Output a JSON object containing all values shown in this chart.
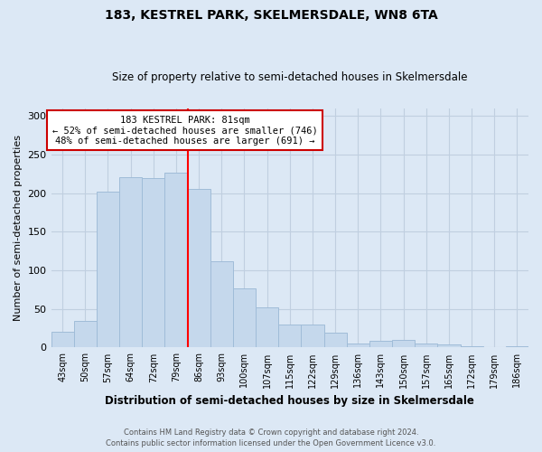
{
  "title": "183, KESTREL PARK, SKELMERSDALE, WN8 6TA",
  "subtitle": "Size of property relative to semi-detached houses in Skelmersdale",
  "xlabel": "Distribution of semi-detached houses by size in Skelmersdale",
  "ylabel": "Number of semi-detached properties",
  "bar_labels": [
    "43sqm",
    "50sqm",
    "57sqm",
    "64sqm",
    "72sqm",
    "79sqm",
    "86sqm",
    "93sqm",
    "100sqm",
    "107sqm",
    "115sqm",
    "122sqm",
    "129sqm",
    "136sqm",
    "143sqm",
    "150sqm",
    "157sqm",
    "165sqm",
    "172sqm",
    "179sqm",
    "186sqm"
  ],
  "bar_values": [
    20,
    34,
    202,
    221,
    219,
    226,
    205,
    112,
    76,
    52,
    30,
    30,
    19,
    5,
    9,
    10,
    5,
    4,
    2,
    1,
    2
  ],
  "bar_color": "#c5d8ec",
  "bar_edge_color": "#a0bcd8",
  "vline_x": 5.5,
  "vline_color": "red",
  "annotation_title": "183 KESTREL PARK: 81sqm",
  "annotation_line1": "← 52% of semi-detached houses are smaller (746)",
  "annotation_line2": "48% of semi-detached houses are larger (691) →",
  "annotation_box_color": "#ffffff",
  "annotation_box_edge": "#cc0000",
  "ylim": [
    0,
    310
  ],
  "yticks": [
    0,
    50,
    100,
    150,
    200,
    250,
    300
  ],
  "footer1": "Contains HM Land Registry data © Crown copyright and database right 2024.",
  "footer2": "Contains public sector information licensed under the Open Government Licence v3.0.",
  "bg_color": "#dce8f5",
  "grid_color": "#c0cfe0"
}
